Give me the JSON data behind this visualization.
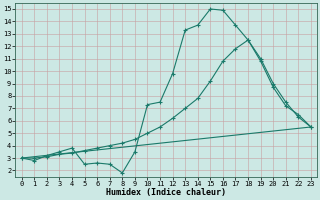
{
  "xlabel": "Humidex (Indice chaleur)",
  "background_color": "#cce8e4",
  "grid_color": "#b0ccc8",
  "line_color": "#1a7a6a",
  "xlim": [
    -0.5,
    23.5
  ],
  "ylim": [
    1.5,
    15.5
  ],
  "xticks": [
    0,
    1,
    2,
    3,
    4,
    5,
    6,
    7,
    8,
    9,
    10,
    11,
    12,
    13,
    14,
    15,
    16,
    17,
    18,
    19,
    20,
    21,
    22,
    23
  ],
  "yticks": [
    2,
    3,
    4,
    5,
    6,
    7,
    8,
    9,
    10,
    11,
    12,
    13,
    14,
    15
  ],
  "line1_x": [
    0,
    1,
    2,
    3,
    4,
    5,
    6,
    7,
    8,
    9,
    10,
    11,
    12,
    13,
    14,
    15,
    16,
    17,
    18,
    19,
    20,
    21,
    22,
    23
  ],
  "line1_y": [
    3.0,
    2.8,
    3.2,
    3.5,
    3.8,
    2.5,
    2.6,
    2.5,
    1.8,
    3.5,
    7.3,
    7.5,
    9.8,
    13.3,
    13.7,
    15.0,
    14.9,
    13.7,
    12.5,
    10.8,
    8.7,
    7.2,
    6.5,
    5.5
  ],
  "line2_x": [
    0,
    1,
    2,
    3,
    4,
    5,
    6,
    7,
    8,
    9,
    10,
    11,
    12,
    13,
    14,
    15,
    16,
    17,
    18,
    19,
    20,
    21,
    22,
    23
  ],
  "line2_y": [
    3.0,
    3.0,
    3.1,
    3.3,
    3.4,
    3.6,
    3.8,
    4.0,
    4.2,
    4.5,
    5.0,
    5.5,
    6.2,
    7.0,
    7.8,
    9.2,
    10.8,
    11.8,
    12.5,
    11.0,
    9.0,
    7.5,
    6.3,
    5.5
  ],
  "line3_x": [
    0,
    23
  ],
  "line3_y": [
    3.0,
    5.5
  ]
}
